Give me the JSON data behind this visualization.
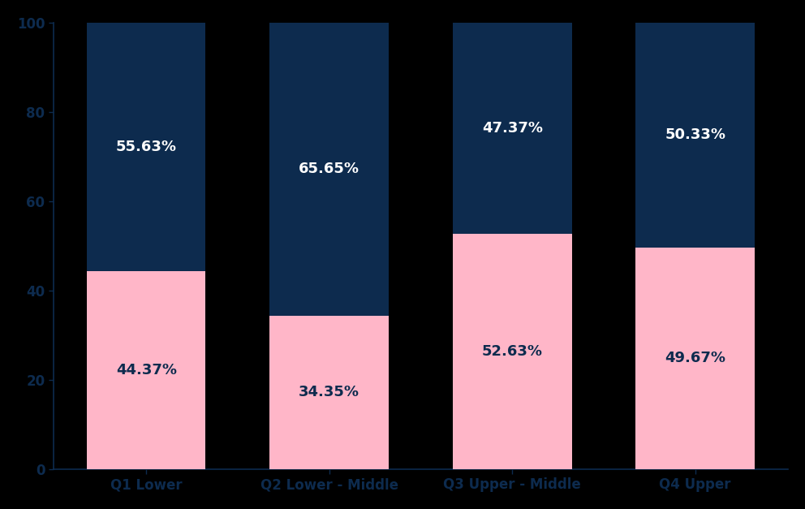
{
  "categories": [
    "Q1 Lower",
    "Q2 Lower - Middle",
    "Q3 Upper - Middle",
    "Q4 Upper"
  ],
  "female_values": [
    44.37,
    34.35,
    52.63,
    49.67
  ],
  "male_values": [
    55.63,
    65.65,
    47.37,
    50.33
  ],
  "female_color": "#FFB6C8",
  "male_color": "#0D2B4E",
  "female_text_color": "#0D2B4E",
  "male_text_color": "#FFFFFF",
  "background_color": "#000000",
  "axis_bg_color": "#000000",
  "ylim": [
    0,
    100
  ],
  "yticks": [
    0,
    20,
    40,
    60,
    80,
    100
  ],
  "bar_width": 0.65,
  "tick_label_color": "#0D2B4E",
  "spine_color": "#0D2B4E",
  "font_size_ticks": 12,
  "font_size_values": 13
}
